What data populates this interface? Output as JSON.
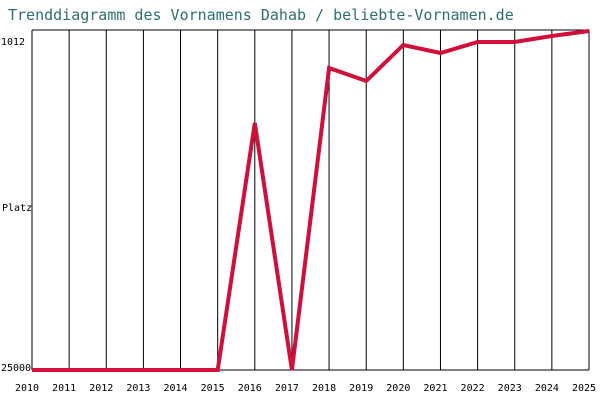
{
  "chart_data": {
    "type": "line",
    "title": "Trenddiagramm des Vornamens Dahab / beliebte-Vornamen.de",
    "ylabel": "Platz",
    "x": [
      2010,
      2011,
      2012,
      2013,
      2014,
      2015,
      2016,
      2017,
      2018,
      2019,
      2020,
      2021,
      2022,
      2023,
      2024,
      2025
    ],
    "y_tick_labels": [
      "1012",
      "Platz",
      "25000"
    ],
    "y_axis_inverted": true,
    "ylim": [
      25000,
      1012
    ],
    "series": [
      {
        "values": [
          25000,
          25000,
          25000,
          25000,
          25000,
          25000,
          7000,
          25000,
          3000,
          4000,
          1200,
          1900,
          1300,
          1300,
          1000,
          500
        ]
      }
    ],
    "grid": "vertical",
    "line_color": "#d0103a"
  }
}
